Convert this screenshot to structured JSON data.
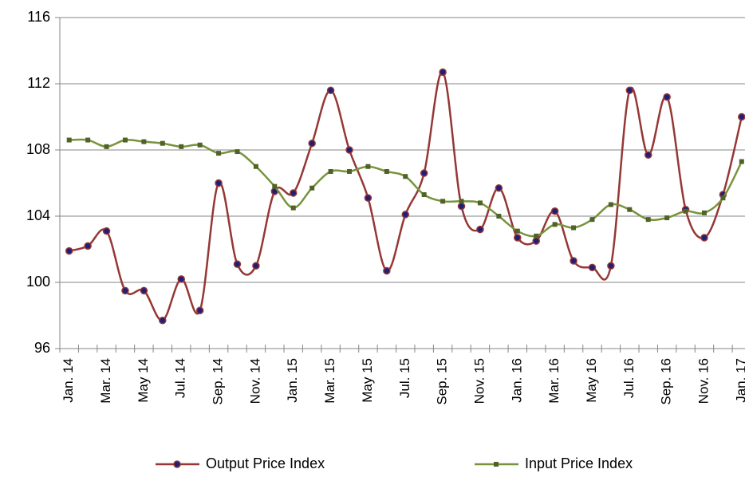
{
  "chart_data": {
    "type": "line",
    "categories": [
      "Jan. 14",
      null,
      "Mar. 14",
      null,
      "May 14",
      null,
      "Jul. 14",
      null,
      "Sep. 14",
      null,
      "Nov. 14",
      null,
      "Jan. 15",
      null,
      "Mar. 15",
      null,
      "May 15",
      null,
      "Jul. 15",
      null,
      "Sep. 15",
      null,
      "Nov. 15",
      null,
      "Jan. 16",
      null,
      "Mar. 16",
      null,
      "May 16",
      null,
      "Jul. 16",
      null,
      "Sep. 16",
      null,
      "Nov. 16",
      null,
      "Jan. 17"
    ],
    "series": [
      {
        "name": "Output Price Index",
        "color": "#953735",
        "marker": "circle",
        "marker_color": "#1f1f7a",
        "values": [
          101.9,
          102.2,
          103.1,
          99.5,
          99.5,
          97.7,
          100.2,
          98.3,
          106.0,
          101.1,
          101.0,
          105.5,
          105.4,
          108.4,
          111.6,
          108.0,
          105.1,
          100.7,
          104.1,
          106.6,
          112.7,
          104.6,
          103.2,
          105.7,
          102.7,
          102.5,
          104.3,
          101.3,
          100.9,
          101.0,
          111.6,
          107.7,
          111.2,
          104.4,
          102.7,
          105.3,
          110.0
        ]
      },
      {
        "name": "Input Price Index",
        "color": "#77933c",
        "marker": "square",
        "marker_color": "#4f6228",
        "values": [
          108.6,
          108.6,
          108.2,
          108.6,
          108.5,
          108.4,
          108.2,
          108.3,
          107.8,
          107.9,
          107.0,
          105.8,
          104.5,
          105.7,
          106.7,
          106.7,
          107.0,
          106.7,
          106.4,
          105.3,
          104.9,
          104.9,
          104.8,
          104.0,
          103.1,
          102.8,
          103.5,
          103.3,
          103.8,
          104.7,
          104.4,
          103.8,
          103.9,
          104.3,
          104.2,
          105.1,
          107.3
        ]
      }
    ],
    "ylim": [
      96,
      116
    ],
    "yticks": [
      96,
      100,
      104,
      108,
      112,
      116
    ],
    "grid": true,
    "legend": "bottom"
  }
}
